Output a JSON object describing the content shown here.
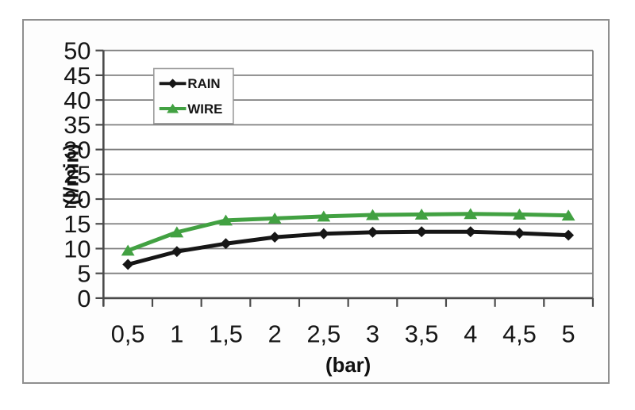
{
  "chart_data": {
    "type": "line",
    "title": "",
    "xlabel": "(bar)",
    "ylabel": "(l/min)",
    "x": [
      0.5,
      1,
      1.5,
      2,
      2.5,
      3,
      3.5,
      4,
      4.5,
      5
    ],
    "categories": [
      "0,5",
      "1",
      "1,5",
      "2",
      "2,5",
      "3",
      "3,5",
      "4",
      "4,5",
      "5"
    ],
    "series": [
      {
        "name": "RAIN",
        "color": "#161616",
        "marker": "diamond",
        "values": [
          6.8,
          9.4,
          11.0,
          12.3,
          13.0,
          13.3,
          13.4,
          13.4,
          13.1,
          12.7
        ]
      },
      {
        "name": "WIRE",
        "color": "#42a142",
        "marker": "triangle",
        "values": [
          9.6,
          13.3,
          15.7,
          16.1,
          16.5,
          16.8,
          16.9,
          17.0,
          16.9,
          16.7
        ]
      }
    ],
    "ylim": [
      0,
      50
    ],
    "yticks": [
      0,
      5,
      10,
      15,
      20,
      25,
      30,
      35,
      40,
      45,
      50
    ],
    "ytick_labels": [
      "0",
      "5",
      "10",
      "15",
      "20",
      "25",
      "30",
      "35",
      "40",
      "45",
      "50"
    ],
    "grid": true,
    "legend_position": "top-left",
    "colors": {
      "gridline": "#7f7f7f",
      "axis": "#4a4a4a",
      "plot_background": "#ffffff",
      "legend_border": "#9a9a9a",
      "legend_background": "#fefefe",
      "frame_border": "#8f8f8f",
      "text": "#161616"
    }
  }
}
